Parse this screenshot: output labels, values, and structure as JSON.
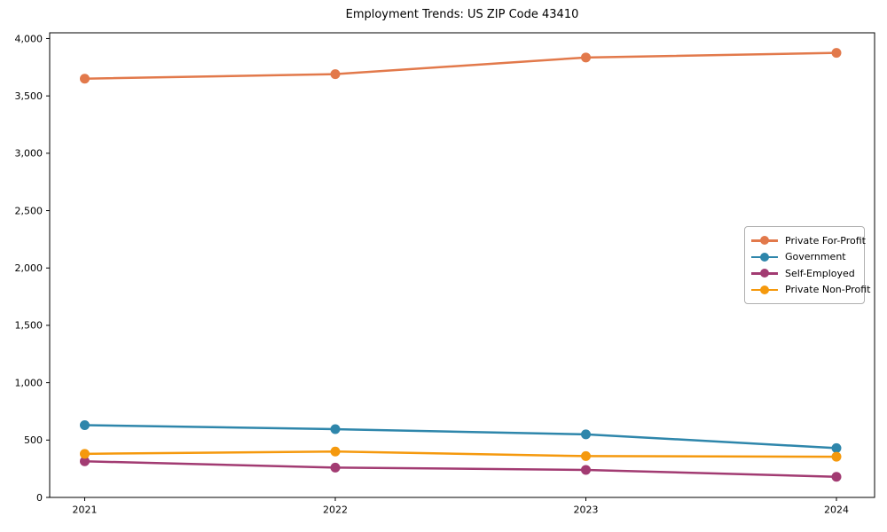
{
  "figure": {
    "title": "Employment Trends: US ZIP Code 43410",
    "background_color": "#ffffff",
    "axis_color": "#000000"
  },
  "chart_data": {
    "type": "line",
    "title": "Employment Trends: US ZIP Code 43410",
    "xlabel": "",
    "ylabel": "",
    "categories": [
      "2021",
      "2022",
      "2023",
      "2024"
    ],
    "series": [
      {
        "name": "Private For-Profit",
        "color": "#E2794B",
        "values": [
          3650,
          3690,
          3835,
          3875
        ]
      },
      {
        "name": "Government",
        "color": "#2E86AB",
        "values": [
          630,
          595,
          550,
          430
        ]
      },
      {
        "name": "Self-Employed",
        "color": "#A23B72",
        "values": [
          315,
          260,
          240,
          180
        ]
      },
      {
        "name": "Private Non-Profit",
        "color": "#F5990D",
        "values": [
          380,
          400,
          360,
          355
        ]
      }
    ],
    "ylim": [
      0,
      4050
    ],
    "yticks": [
      0,
      500,
      1000,
      1500,
      2000,
      2500,
      3000,
      3500,
      4000
    ],
    "ytick_labels": [
      "0",
      "500",
      "1,000",
      "1,500",
      "2,000",
      "2,500",
      "3,000",
      "3,500",
      "4,000"
    ],
    "grid": false,
    "legend_position": "center right",
    "marker": "circle",
    "line_width": 2.5,
    "marker_radius": 5.5
  }
}
